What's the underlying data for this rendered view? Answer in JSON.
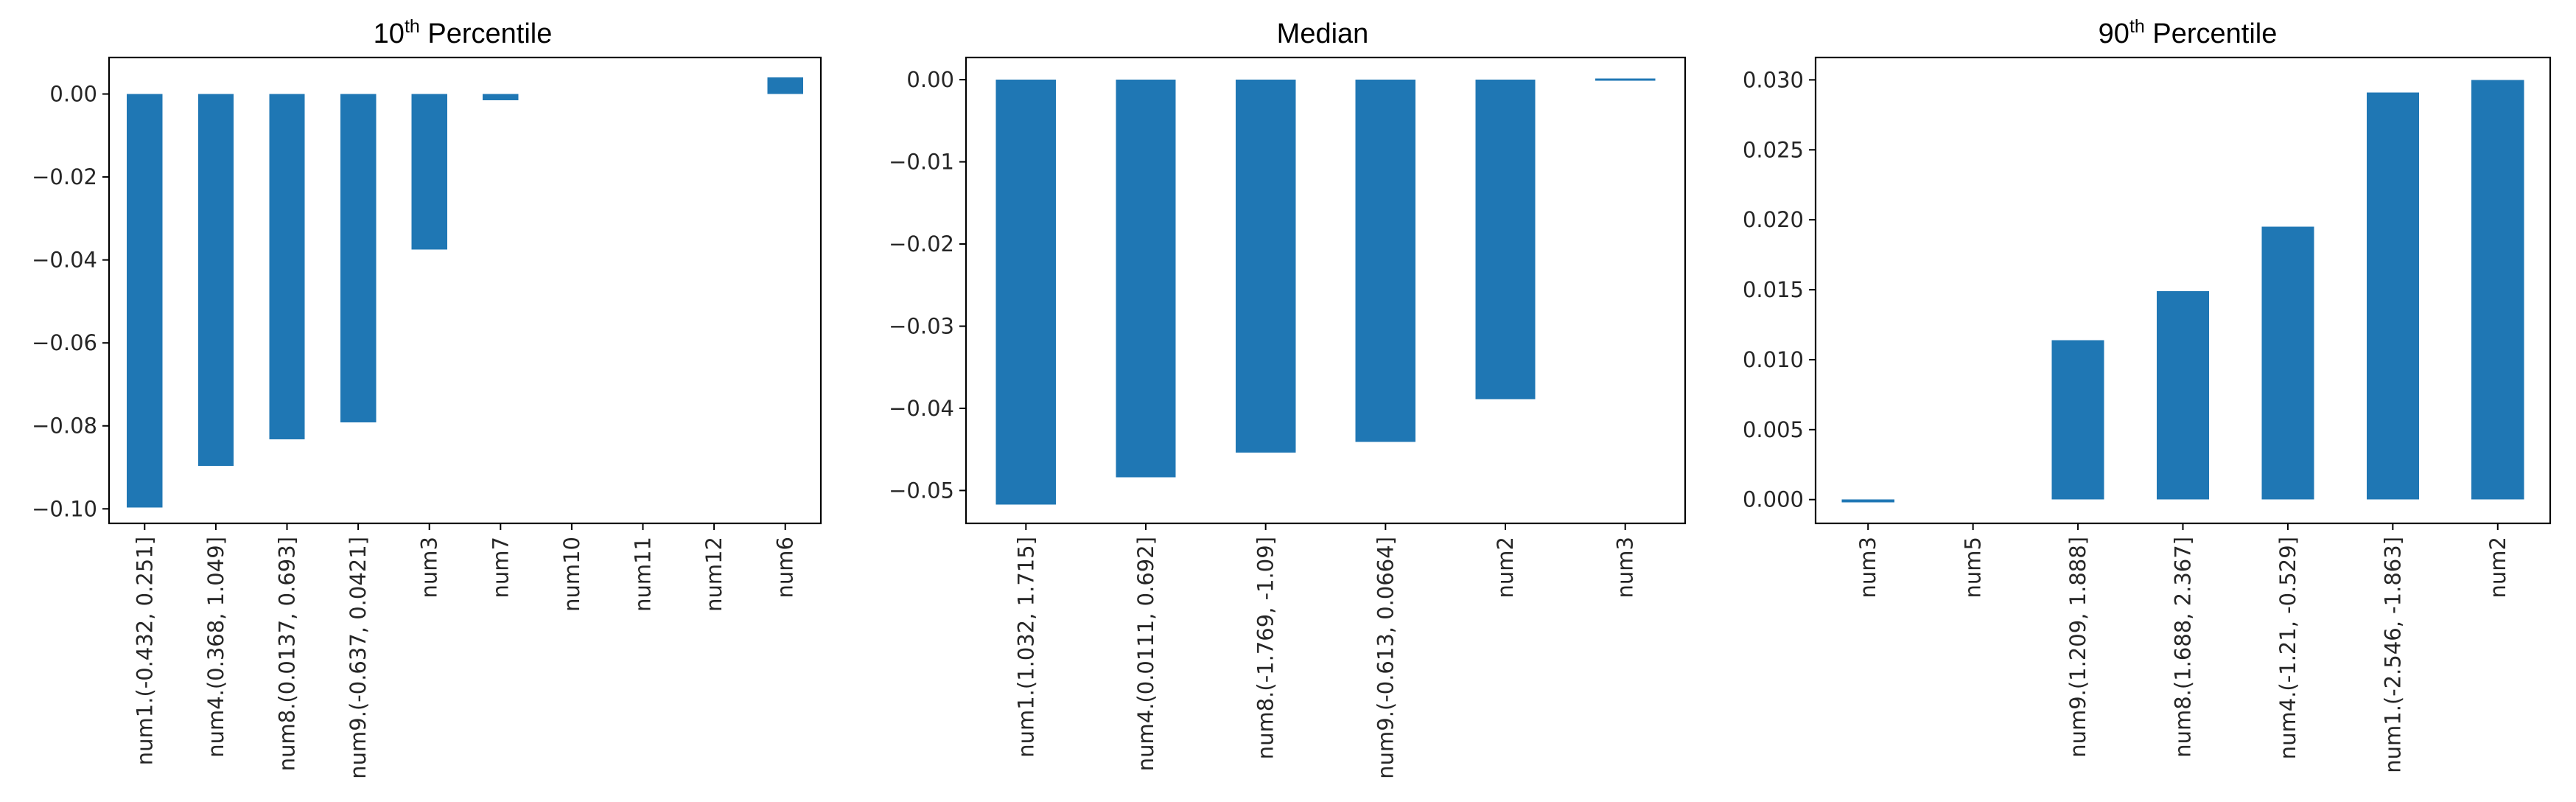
{
  "colors": {
    "bar": "#1f77b4"
  },
  "chart_data": [
    {
      "type": "bar",
      "title": "10th Percentile",
      "title_parts": {
        "base": "10",
        "sup": "th",
        "rest": " Percentile"
      },
      "categories": [
        "num1.(-0.432, 0.251]",
        "num4.(0.368, 1.049]",
        "num8.(0.0137, 0.693]",
        "num9.(-0.637, 0.0421]",
        "num3",
        "num7",
        "num10",
        "num11",
        "num12",
        "num6"
      ],
      "values": [
        -0.0997,
        -0.0896,
        -0.0832,
        -0.0792,
        -0.0375,
        -0.0015,
        0,
        0,
        0,
        0.004
      ],
      "ylim": [
        -0.1035,
        0.0088
      ],
      "yticks": [
        0.0,
        -0.02,
        -0.04,
        -0.06,
        -0.08,
        -0.1
      ],
      "ytick_labels": [
        "0.00",
        "−0.02",
        "−0.04",
        "−0.06",
        "−0.08",
        "−0.10"
      ],
      "xlabel": "",
      "ylabel": ""
    },
    {
      "type": "bar",
      "title": "Median",
      "categories": [
        "num1.(1.032, 1.715]",
        "num4.(0.0111, 0.692]",
        "num8.(-1.769, -1.09]",
        "num9.(-0.613, 0.0664]",
        "num2",
        "num3"
      ],
      "values": [
        -0.0517,
        -0.0484,
        -0.0454,
        -0.0441,
        -0.0389,
        0.0001
      ],
      "ylim": [
        -0.054,
        0.0027
      ],
      "yticks": [
        0.0,
        -0.01,
        -0.02,
        -0.03,
        -0.04,
        -0.05
      ],
      "ytick_labels": [
        "0.00",
        "−0.01",
        "−0.02",
        "−0.03",
        "−0.04",
        "−0.05"
      ],
      "xlabel": "",
      "ylabel": ""
    },
    {
      "type": "bar",
      "title": "90th Percentile",
      "title_parts": {
        "base": "90",
        "sup": "th",
        "rest": " Percentile"
      },
      "categories": [
        "num3",
        "num5",
        "num9.(1.209, 1.888]",
        "num8.(1.688, 2.367]",
        "num4.(-1.21, -0.529]",
        "num1.(-2.546, -1.863]",
        "num2"
      ],
      "values": [
        -0.0002,
        0,
        0.0114,
        0.0149,
        0.0195,
        0.0291,
        0.03
      ],
      "ylim": [
        -0.0017,
        0.0316
      ],
      "yticks": [
        0.0,
        0.005,
        0.01,
        0.015,
        0.02,
        0.025,
        0.03
      ],
      "ytick_labels": [
        "0.000",
        "0.005",
        "0.010",
        "0.015",
        "0.020",
        "0.025",
        "0.030"
      ],
      "xlabel": "",
      "ylabel": ""
    }
  ]
}
